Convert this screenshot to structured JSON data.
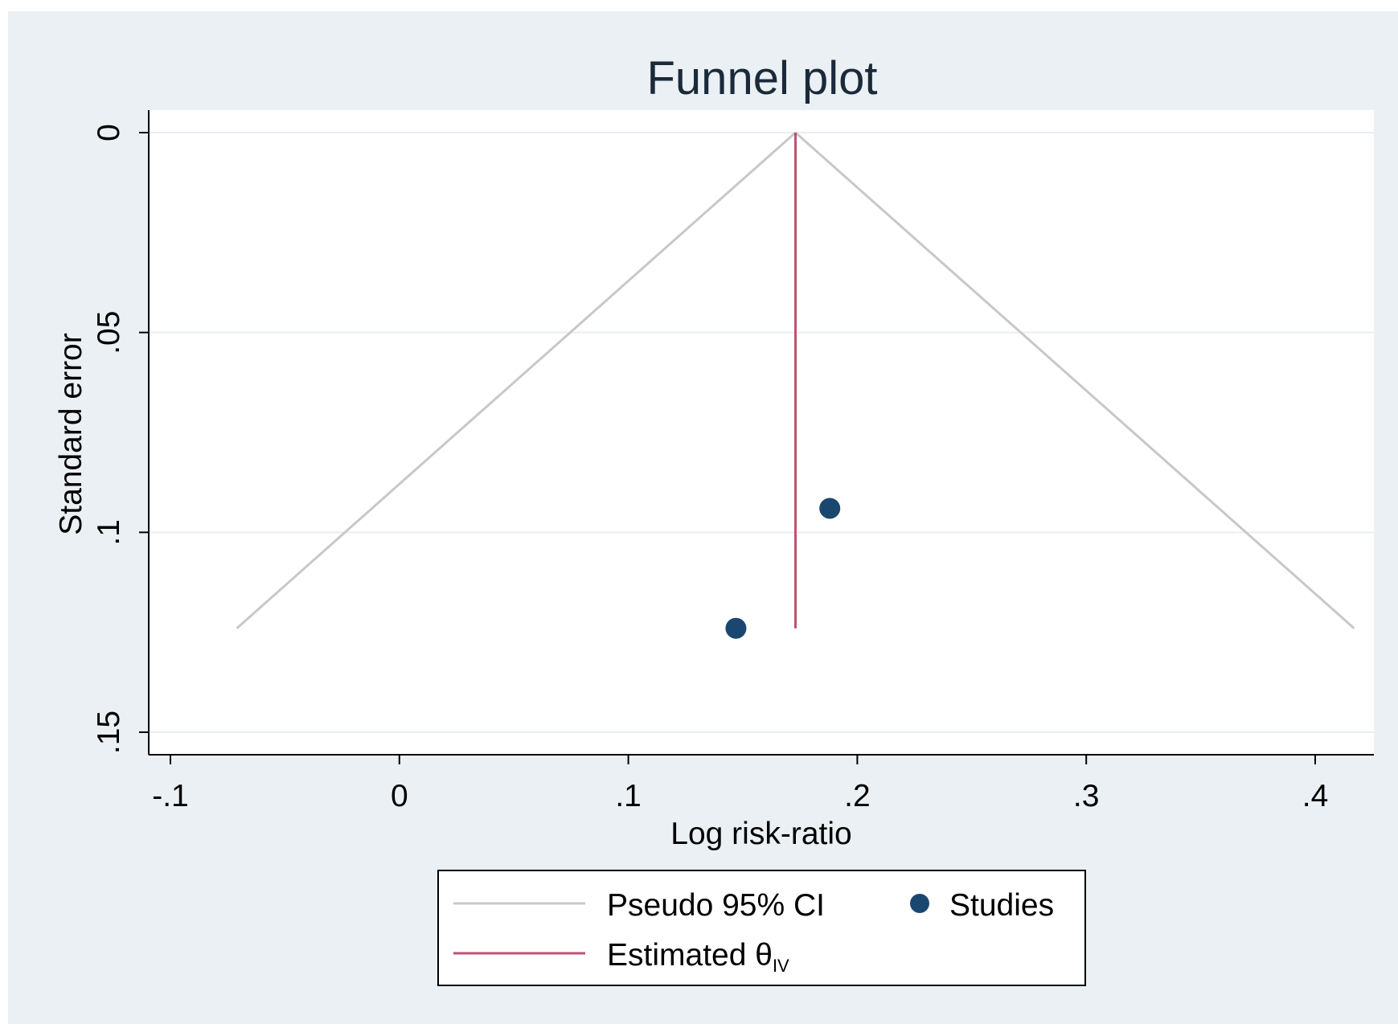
{
  "chart_data": {
    "type": "scatter",
    "title": "Funnel plot",
    "xlabel": "Log risk-ratio",
    "ylabel": "Standard error",
    "xlim": [
      -0.11,
      0.425
    ],
    "ylim": [
      0,
      0.155
    ],
    "y_reversed": true,
    "x_ticks": [
      {
        "value": -0.1,
        "label": "-.1"
      },
      {
        "value": 0,
        "label": "0"
      },
      {
        "value": 0.1,
        "label": ".1"
      },
      {
        "value": 0.2,
        "label": ".2"
      },
      {
        "value": 0.3,
        "label": ".3"
      },
      {
        "value": 0.4,
        "label": ".4"
      }
    ],
    "y_ticks": [
      {
        "value": 0,
        "label": "0"
      },
      {
        "value": 0.05,
        "label": ".05"
      },
      {
        "value": 0.1,
        "label": ".1"
      },
      {
        "value": 0.15,
        "label": ".15"
      }
    ],
    "grid": true,
    "studies": {
      "name": "Studies",
      "color": "#1a476f",
      "points": [
        {
          "x": 0.188,
          "y": 0.094
        },
        {
          "x": 0.147,
          "y": 0.124
        }
      ]
    },
    "pseudo_ci": {
      "name": "Pseudo 95% CI",
      "color": "#c8c8c8",
      "apex": {
        "x": 0.173,
        "y": 0
      },
      "left_end": {
        "x": -0.071,
        "y": 0.124
      },
      "right_end": {
        "x": 0.417,
        "y": 0.124
      }
    },
    "estimate": {
      "name": "Estimated θ",
      "subscript": "IV",
      "color": "#c0506e",
      "x": 0.173,
      "y_range": [
        0,
        0.124
      ]
    },
    "legend_position": "bottom",
    "colors": {
      "background": "#eaf0f3",
      "plot_area": "#ffffff",
      "axis": "#000000",
      "text": "#000000",
      "title": "#1a2a3a",
      "gridline": "#e9eef1"
    }
  }
}
